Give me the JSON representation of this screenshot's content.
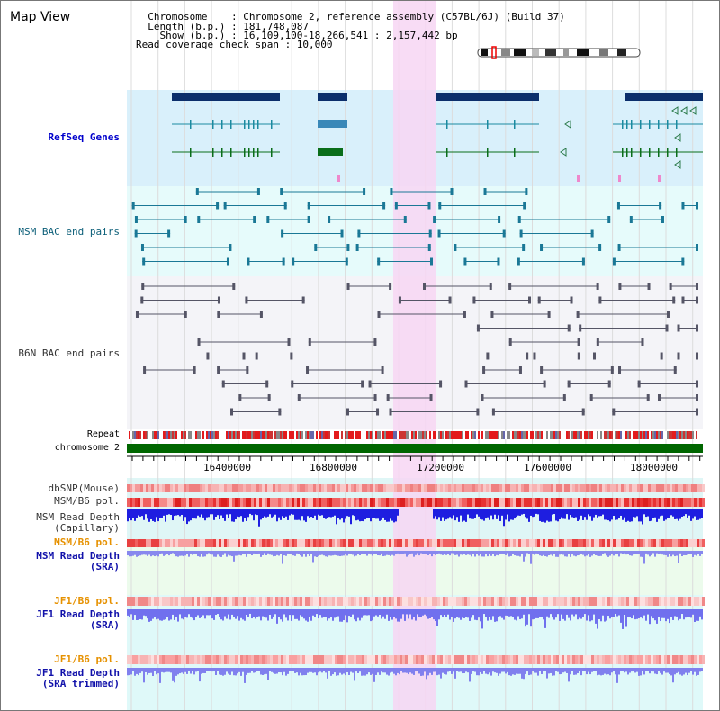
{
  "header": {
    "map_title": "Map View",
    "info_lines": [
      "  Chromosome    : Chromosome 2, reference assembly (C57BL/6J) (Build 37)",
      "  Length (b.p.) : 181,748,087",
      "    Show (b.p.) : 16,109,100-18,266,541 : 2,157,442 bp",
      "Read coverage check span : 10,000"
    ]
  },
  "tracks": {
    "refseq": "RefSeq Genes",
    "msm_bac": "MSM BAC end pairs",
    "b6n_bac": "B6N BAC end pairs",
    "repeat": "Repeat",
    "chromosome": "chromosome 2",
    "dbsnp": "dbSNP(Mouse)",
    "msm_b6_pol_1": "MSM/B6 pol.",
    "msm_depth_cap_1": "MSM Read Depth",
    "msm_depth_cap_2": "(Capillary)",
    "msm_b6_pol_2": "MSM/B6 pol.",
    "msm_depth_sra_1": "MSM Read Depth",
    "msm_depth_sra_2": "(SRA)",
    "jf1_b6_pol_1": "JF1/B6 pol.",
    "jf1_depth_sra_1": "JF1 Read Depth",
    "jf1_depth_sra_2": "(SRA)",
    "jf1_b6_pol_2": "JF1/B6 pol.",
    "jf1_depth_trim_1": "JF1 Read Depth",
    "jf1_depth_trim_2": "(SRA trimmed)"
  },
  "axis": {
    "ticks": [
      "16400000",
      "16800000",
      "17200000",
      "17600000",
      "18000000"
    ]
  },
  "colors": {
    "highlight": "#f7d6f3",
    "refseq_bg": "#d9f0fb",
    "bac_bg": "#e6fbfb",
    "gene_dark": "#0b2e6b",
    "gene_teal": "#1a8aa0",
    "gene_green": "#0a6e1a",
    "chromosome_bar": "#006600",
    "depth_dark": "#2222dd",
    "depth_light": "#7777ee"
  }
}
